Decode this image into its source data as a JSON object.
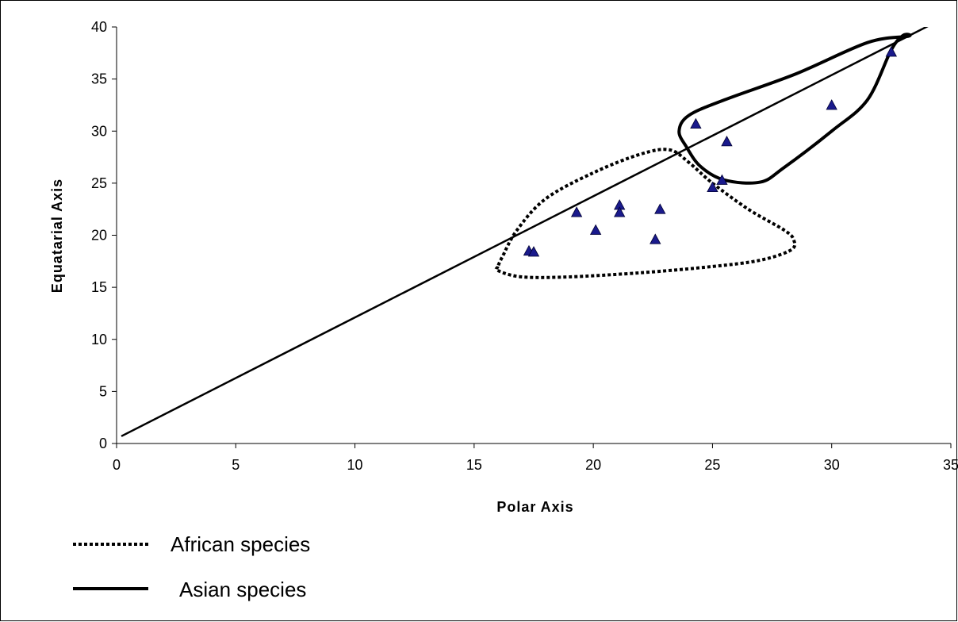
{
  "chart_data": {
    "type": "scatter",
    "title": "",
    "xlabel": "Polar Axis",
    "ylabel": "Equatarial Axis",
    "xlim": [
      0,
      35
    ],
    "ylim": [
      0,
      40
    ],
    "xticks": [
      0,
      5,
      10,
      15,
      20,
      25,
      30,
      35
    ],
    "yticks": [
      0,
      5,
      10,
      15,
      20,
      25,
      30,
      35,
      40
    ],
    "grid": false,
    "marker": "triangle",
    "marker_color": "#1a1a8c",
    "points": [
      {
        "x": 17.3,
        "y": 18.5
      },
      {
        "x": 17.5,
        "y": 18.4
      },
      {
        "x": 19.3,
        "y": 22.2
      },
      {
        "x": 20.1,
        "y": 20.5
      },
      {
        "x": 21.1,
        "y": 22.9
      },
      {
        "x": 21.1,
        "y": 22.2
      },
      {
        "x": 22.6,
        "y": 19.6
      },
      {
        "x": 22.8,
        "y": 22.5
      },
      {
        "x": 24.3,
        "y": 30.7
      },
      {
        "x": 25.0,
        "y": 24.6
      },
      {
        "x": 25.4,
        "y": 25.3
      },
      {
        "x": 25.6,
        "y": 29.0
      },
      {
        "x": 30.0,
        "y": 32.5
      },
      {
        "x": 32.5,
        "y": 37.6
      }
    ],
    "trendline": {
      "from": [
        0.2,
        0.7
      ],
      "to": [
        35,
        41.2
      ]
    },
    "regions": [
      {
        "name": "African species",
        "style": "dotted",
        "outline": [
          [
            16.0,
            17.0
          ],
          [
            16.0,
            16.6
          ],
          [
            17.0,
            16.0
          ],
          [
            19.0,
            16.0
          ],
          [
            22.0,
            16.4
          ],
          [
            25.0,
            17.0
          ],
          [
            27.0,
            17.6
          ],
          [
            28.3,
            18.6
          ],
          [
            28.4,
            19.6
          ],
          [
            28.0,
            20.5
          ],
          [
            26.5,
            22.5
          ],
          [
            25.0,
            25.0
          ],
          [
            24.0,
            27.0
          ],
          [
            23.2,
            28.2
          ],
          [
            22.0,
            27.8
          ],
          [
            20.0,
            26.0
          ],
          [
            18.0,
            23.5
          ],
          [
            16.8,
            20.5
          ],
          [
            16.2,
            18.0
          ]
        ]
      },
      {
        "name": "Asian species",
        "style": "solid",
        "outline": [
          [
            33.0,
            39.2
          ],
          [
            32.5,
            37.8
          ],
          [
            31.5,
            33.0
          ],
          [
            30.0,
            30.0
          ],
          [
            28.0,
            26.5
          ],
          [
            27.0,
            25.1
          ],
          [
            25.5,
            25.3
          ],
          [
            24.5,
            26.6
          ],
          [
            23.9,
            28.5
          ],
          [
            23.6,
            30.0
          ],
          [
            24.0,
            31.5
          ],
          [
            25.5,
            33.0
          ],
          [
            28.5,
            35.5
          ],
          [
            31.5,
            38.5
          ],
          [
            33.2,
            39.1
          ]
        ]
      }
    ],
    "legend": {
      "placement": "bottom-left",
      "entries": [
        {
          "label": "African species",
          "style": "dotted"
        },
        {
          "label": "Asian species",
          "style": "solid"
        }
      ]
    }
  }
}
